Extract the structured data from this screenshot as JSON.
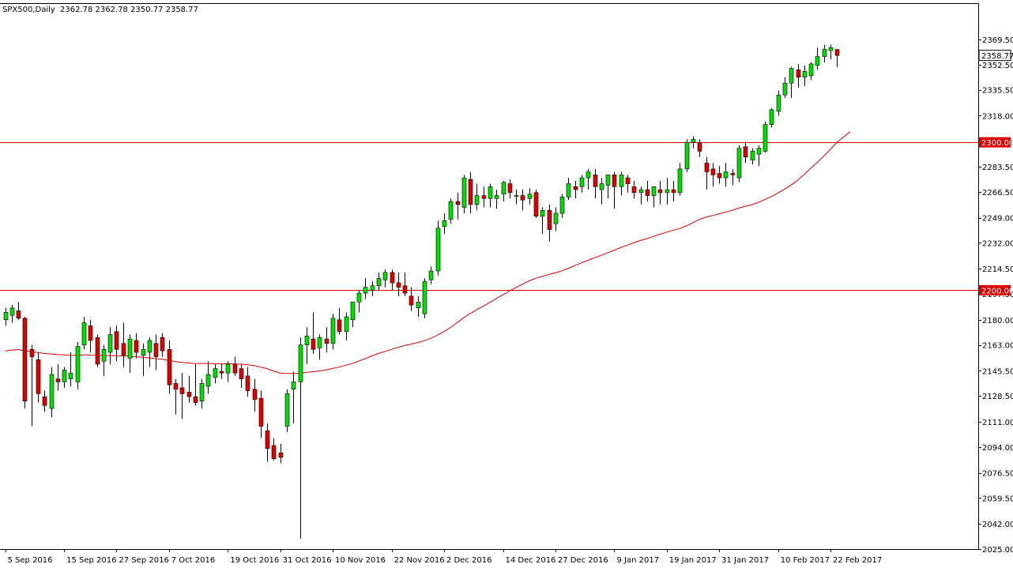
{
  "header": {
    "symbol": "SPX500,Daily",
    "ohlc": "2362.78 2362.78 2350.77 2358.77"
  },
  "colors": {
    "bull": "#00dd00",
    "bear": "#dd0000",
    "wick": "#000000",
    "hline": "#dd0000",
    "ma": "#dd0000",
    "axis": "#000000",
    "tag_text": "#ffffff",
    "last_price_bg": "#ffffff"
  },
  "chart_data": {
    "type": "candlestick",
    "symbol": "SPX500",
    "timeframe": "Daily",
    "ylim": [
      2025.5,
      2377.0
    ],
    "y_ticks": [
      "2369.50",
      "2352.50",
      "2335.50",
      "2318.00",
      "2300.00",
      "2283.50",
      "2266.50",
      "2249.00",
      "2232.00",
      "2214.50",
      "2197.50",
      "2180.00",
      "2163.00",
      "2145.50",
      "2128.50",
      "2111.00",
      "2094.00",
      "2076.50",
      "2059.50",
      "2042.00",
      "2025.00"
    ],
    "x_labels": [
      "5 Sep 2016",
      "15 Sep 2016",
      "27 Sep 2016",
      "7 Oct 2016",
      "19 Oct 2016",
      "31 Oct 2016",
      "10 Nov 2016",
      "22 Nov 2016",
      "2 Dec 2016",
      "14 Dec 2016",
      "27 Dec 2016",
      "9 Jan 2017",
      "19 Jan 2017",
      "31 Jan 2017",
      "10 Feb 2017",
      "22 Feb 2017"
    ],
    "x_label_bar_index": [
      0,
      9,
      17,
      25,
      34,
      42,
      50,
      59,
      67,
      76,
      84,
      93,
      101,
      109,
      118,
      126
    ],
    "horizontal_lines": [
      {
        "value": 2300.0,
        "label": "2300.00"
      },
      {
        "value": 2200.0,
        "label": "2200.00"
      }
    ],
    "last_price": {
      "value": 2358.77,
      "label": "2358.77"
    },
    "candles": [
      [
        2180,
        2188,
        2176,
        2185
      ],
      [
        2183,
        2190,
        2178,
        2188
      ],
      [
        2186,
        2192,
        2180,
        2181
      ],
      [
        2181,
        2182,
        2120,
        2125
      ],
      [
        2160,
        2163,
        2108,
        2155
      ],
      [
        2153,
        2158,
        2124,
        2130
      ],
      [
        2128,
        2132,
        2118,
        2122
      ],
      [
        2120,
        2148,
        2114,
        2143
      ],
      [
        2140,
        2150,
        2132,
        2138
      ],
      [
        2138,
        2148,
        2134,
        2146
      ],
      [
        2140,
        2158,
        2135,
        2144
      ],
      [
        2138,
        2165,
        2133,
        2162
      ],
      [
        2163,
        2182,
        2160,
        2178
      ],
      [
        2176,
        2180,
        2158,
        2166
      ],
      [
        2168,
        2170,
        2148,
        2150
      ],
      [
        2152,
        2163,
        2142,
        2160
      ],
      [
        2158,
        2175,
        2150,
        2170
      ],
      [
        2172,
        2176,
        2152,
        2160
      ],
      [
        2164,
        2178,
        2148,
        2156
      ],
      [
        2154,
        2170,
        2144,
        2167
      ],
      [
        2166,
        2171,
        2154,
        2158
      ],
      [
        2156,
        2164,
        2142,
        2160
      ],
      [
        2158,
        2168,
        2148,
        2166
      ],
      [
        2164,
        2170,
        2146,
        2155
      ],
      [
        2168,
        2171,
        2155,
        2159
      ],
      [
        2160,
        2166,
        2130,
        2136
      ],
      [
        2137,
        2140,
        2116,
        2133
      ],
      [
        2134,
        2144,
        2113,
        2130
      ],
      [
        2131,
        2142,
        2124,
        2128
      ],
      [
        2128,
        2150,
        2122,
        2124
      ],
      [
        2125,
        2140,
        2120,
        2137
      ],
      [
        2135,
        2152,
        2130,
        2143
      ],
      [
        2141,
        2150,
        2137,
        2147
      ],
      [
        2145,
        2150,
        2140,
        2144
      ],
      [
        2144,
        2152,
        2138,
        2150
      ],
      [
        2150,
        2155,
        2142,
        2144
      ],
      [
        2147,
        2150,
        2134,
        2140
      ],
      [
        2142,
        2148,
        2128,
        2132
      ],
      [
        2133,
        2140,
        2118,
        2126
      ],
      [
        2127,
        2132,
        2100,
        2108
      ],
      [
        2105,
        2110,
        2084,
        2093
      ],
      [
        2095,
        2100,
        2085,
        2086
      ],
      [
        2090,
        2096,
        2083,
        2087
      ],
      [
        2108,
        2133,
        2104,
        2130
      ],
      [
        2133,
        2145,
        2110,
        2138
      ],
      [
        2138,
        2168,
        2032,
        2163
      ],
      [
        2163,
        2175,
        2150,
        2169
      ],
      [
        2167,
        2185,
        2157,
        2160
      ],
      [
        2161,
        2170,
        2153,
        2168
      ],
      [
        2167,
        2175,
        2158,
        2164
      ],
      [
        2164,
        2184,
        2160,
        2181
      ],
      [
        2180,
        2188,
        2170,
        2172
      ],
      [
        2172,
        2185,
        2166,
        2182
      ],
      [
        2180,
        2192,
        2175,
        2192
      ],
      [
        2192,
        2200,
        2185,
        2198
      ],
      [
        2198,
        2208,
        2194,
        2202
      ],
      [
        2200,
        2206,
        2196,
        2203
      ],
      [
        2203,
        2212,
        2200,
        2208
      ],
      [
        2207,
        2214,
        2202,
        2212
      ],
      [
        2212,
        2214,
        2200,
        2205
      ],
      [
        2205,
        2212,
        2196,
        2202
      ],
      [
        2203,
        2212,
        2196,
        2198
      ],
      [
        2196,
        2202,
        2186,
        2190
      ],
      [
        2188,
        2196,
        2182,
        2192
      ],
      [
        2184,
        2208,
        2181,
        2206
      ],
      [
        2207,
        2216,
        2204,
        2213
      ],
      [
        2213,
        2247,
        2210,
        2242
      ],
      [
        2243,
        2252,
        2238,
        2247
      ],
      [
        2248,
        2262,
        2245,
        2260
      ],
      [
        2260,
        2266,
        2248,
        2258
      ],
      [
        2256,
        2278,
        2252,
        2276
      ],
      [
        2275,
        2280,
        2252,
        2258
      ],
      [
        2258,
        2272,
        2254,
        2264
      ],
      [
        2264,
        2270,
        2256,
        2262
      ],
      [
        2262,
        2272,
        2256,
        2270
      ],
      [
        2262,
        2268,
        2255,
        2264
      ],
      [
        2265,
        2274,
        2260,
        2273
      ],
      [
        2272,
        2275,
        2262,
        2266
      ],
      [
        2264,
        2268,
        2258,
        2264
      ],
      [
        2264,
        2268,
        2254,
        2261
      ],
      [
        2262,
        2269,
        2258,
        2265
      ],
      [
        2266,
        2268,
        2249,
        2250
      ],
      [
        2250,
        2256,
        2238,
        2254
      ],
      [
        2254,
        2258,
        2233,
        2241
      ],
      [
        2245,
        2256,
        2240,
        2252
      ],
      [
        2252,
        2265,
        2249,
        2263
      ],
      [
        2263,
        2276,
        2261,
        2272
      ],
      [
        2270,
        2274,
        2262,
        2268
      ],
      [
        2270,
        2278,
        2266,
        2276
      ],
      [
        2276,
        2282,
        2268,
        2280
      ],
      [
        2278,
        2282,
        2262,
        2270
      ],
      [
        2268,
        2276,
        2258,
        2272
      ],
      [
        2271,
        2276,
        2262,
        2278
      ],
      [
        2278,
        2280,
        2255,
        2270
      ],
      [
        2270,
        2280,
        2264,
        2278
      ],
      [
        2276,
        2278,
        2266,
        2272
      ],
      [
        2270,
        2274,
        2262,
        2266
      ],
      [
        2266,
        2270,
        2258,
        2268
      ],
      [
        2268,
        2274,
        2260,
        2264
      ],
      [
        2264,
        2270,
        2256,
        2270
      ],
      [
        2268,
        2274,
        2258,
        2266
      ],
      [
        2266,
        2276,
        2258,
        2268
      ],
      [
        2268,
        2274,
        2260,
        2266
      ],
      [
        2266,
        2286,
        2264,
        2282
      ],
      [
        2282,
        2302,
        2280,
        2300
      ],
      [
        2300,
        2304,
        2296,
        2302
      ],
      [
        2300,
        2302,
        2290,
        2294
      ],
      [
        2286,
        2290,
        2268,
        2280
      ],
      [
        2282,
        2286,
        2270,
        2278
      ],
      [
        2279,
        2284,
        2272,
        2276
      ],
      [
        2276,
        2286,
        2270,
        2280
      ],
      [
        2279,
        2282,
        2271,
        2278
      ],
      [
        2276,
        2298,
        2273,
        2296
      ],
      [
        2297,
        2300,
        2286,
        2290
      ],
      [
        2288,
        2296,
        2285,
        2294
      ],
      [
        2292,
        2298,
        2284,
        2296
      ],
      [
        2294,
        2314,
        2293,
        2312
      ],
      [
        2312,
        2323,
        2310,
        2322
      ],
      [
        2321,
        2335,
        2318,
        2332
      ],
      [
        2332,
        2344,
        2330,
        2340
      ],
      [
        2340,
        2351,
        2330,
        2350
      ],
      [
        2349,
        2353,
        2337,
        2344
      ],
      [
        2344,
        2352,
        2338,
        2348
      ],
      [
        2345,
        2354,
        2342,
        2353
      ],
      [
        2352,
        2364,
        2349,
        2358
      ],
      [
        2358,
        2366,
        2354,
        2363
      ],
      [
        2362,
        2366,
        2356,
        2364
      ],
      [
        2362.78,
        2362.78,
        2350.77,
        2358.77
      ]
    ],
    "moving_average": [
      2158.9,
      2159.5,
      2159.9,
      2158.9,
      2158.5,
      2157.9,
      2157.2,
      2156.9,
      2156.5,
      2156.2,
      2156,
      2156,
      2156.3,
      2156.1,
      2155.9,
      2155.7,
      2155.8,
      2155.7,
      2155.5,
      2155.4,
      2155,
      2154.6,
      2154.2,
      2153.7,
      2153.3,
      2152.4,
      2151.8,
      2151.2,
      2150.8,
      2150.4,
      2150.5,
      2150.4,
      2150.3,
      2150.2,
      2150.3,
      2150.1,
      2149.9,
      2149.6,
      2149,
      2148,
      2147,
      2145.2,
      2143.9,
      2143.7,
      2143.7,
      2143.7,
      2144.4,
      2144.9,
      2145.4,
      2146.1,
      2147.1,
      2148,
      2149.3,
      2150.4,
      2152.1,
      2153.8,
      2155.6,
      2157.2,
      2158.6,
      2160,
      2161.4,
      2162.6,
      2163.6,
      2164.6,
      2165.9,
      2167.5,
      2169.6,
      2172.1,
      2174.8,
      2178.1,
      2181.4,
      2184.2,
      2186.9,
      2189.2,
      2191.8,
      2194.4,
      2196.9,
      2199.5,
      2201.9,
      2204.1,
      2206.3,
      2208.1,
      2209.3,
      2210.7,
      2211.7,
      2213.1,
      2214.8,
      2216.7,
      2218.5,
      2220.2,
      2222,
      2223.6,
      2225.4,
      2227.1,
      2228.8,
      2230.5,
      2232.2,
      2233.6,
      2234.9,
      2236.4,
      2237.9,
      2239.3,
      2240.6,
      2241.7,
      2243.5,
      2245.7,
      2247.9,
      2249.4,
      2250.5,
      2251.7,
      2252.8,
      2254,
      2255.5,
      2256.8,
      2257.8,
      2259.4,
      2261.4,
      2263.3,
      2265.8,
      2268.4,
      2271.1,
      2274.5,
      2278.4,
      2282.6,
      2286.5,
      2290.8,
      2295.3,
      2300,
      2303.6,
      2307.2
    ]
  }
}
